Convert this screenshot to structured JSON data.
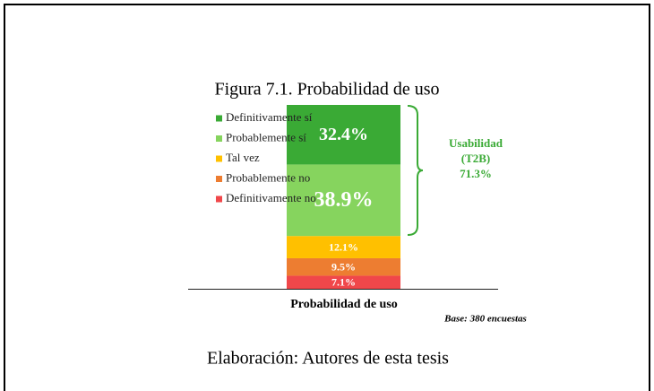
{
  "chart_data": {
    "type": "stacked_bar",
    "title": "Figura 7.1. Probabilidad de uso",
    "categories": [
      "Probabilidad de uso"
    ],
    "series": [
      {
        "name": "Definitivamente no",
        "color": "#f0474a",
        "values": [
          7.1
        ],
        "value_labels": [
          "7.1%"
        ]
      },
      {
        "name": "Probablemente no",
        "color": "#ed7d31",
        "values": [
          9.5
        ],
        "value_labels": [
          "9.5%"
        ]
      },
      {
        "name": "Tal vez",
        "color": "#ffc000",
        "values": [
          12.1
        ],
        "value_labels": [
          "12.1%"
        ]
      },
      {
        "name": "Probablemente sí",
        "color": "#86d45e",
        "values": [
          38.9
        ],
        "value_labels": [
          "38.9%"
        ]
      },
      {
        "name": "Definitivamente sí",
        "color": "#3aaa35",
        "values": [
          32.4
        ],
        "value_labels": [
          "32.4%"
        ]
      }
    ],
    "ylim": [
      0,
      100
    ],
    "annotation": [
      "Usabilidad",
      "(T2B)",
      "71.3%"
    ],
    "note": "Base: 380 encuestas",
    "source": "Elaboración: Autores de esta tesis"
  }
}
